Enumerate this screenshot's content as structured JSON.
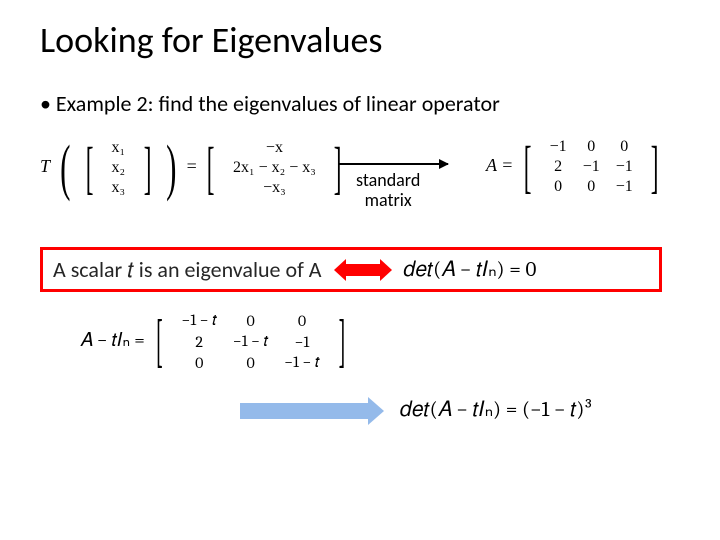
{
  "title": "Looking for Eigenvalues",
  "bullet": "• Example 2: find the eigenvalues of linear operator",
  "transform": {
    "T": "T",
    "vec": {
      "r1": "x₁",
      "r2": "x₂",
      "r3": "x₃"
    },
    "eq": "=",
    "out": {
      "r1": "−x",
      "r2": "2x₁ − x₂ − x₃",
      "r3": "−x₃"
    }
  },
  "stdmat": {
    "l1": "standard",
    "l2": "matrix"
  },
  "matA": {
    "label": "A =",
    "m": {
      "r1c1": "−1",
      "r1c2": "0",
      "r1c3": "0",
      "r2c1": "2",
      "r2c2": "−1",
      "r2c3": "−1",
      "r3c1": "0",
      "r3c2": "0",
      "r3c3": "−1"
    }
  },
  "redbox": {
    "text": "A scalar 𝑡 is an eigenvalue of A",
    "det": "𝑑𝑒𝑡(𝐴 − 𝑡𝐼ₙ) = 0"
  },
  "matT": {
    "label": "𝐴 − 𝑡𝐼ₙ =",
    "m": {
      "r1c1": "−1 − 𝑡",
      "r1c2": "0",
      "r1c3": "0",
      "r2c1": "2",
      "r2c2": "−1 − 𝑡",
      "r2c3": "−1",
      "r3c1": "0",
      "r3c2": "0",
      "r3c3": "−1 − 𝑡"
    }
  },
  "result": "𝑑𝑒𝑡(𝐴 − 𝑡𝐼ₙ) = (−1 − 𝑡)³",
  "colors": {
    "red": "#ff0000",
    "blue": "#94baea"
  }
}
